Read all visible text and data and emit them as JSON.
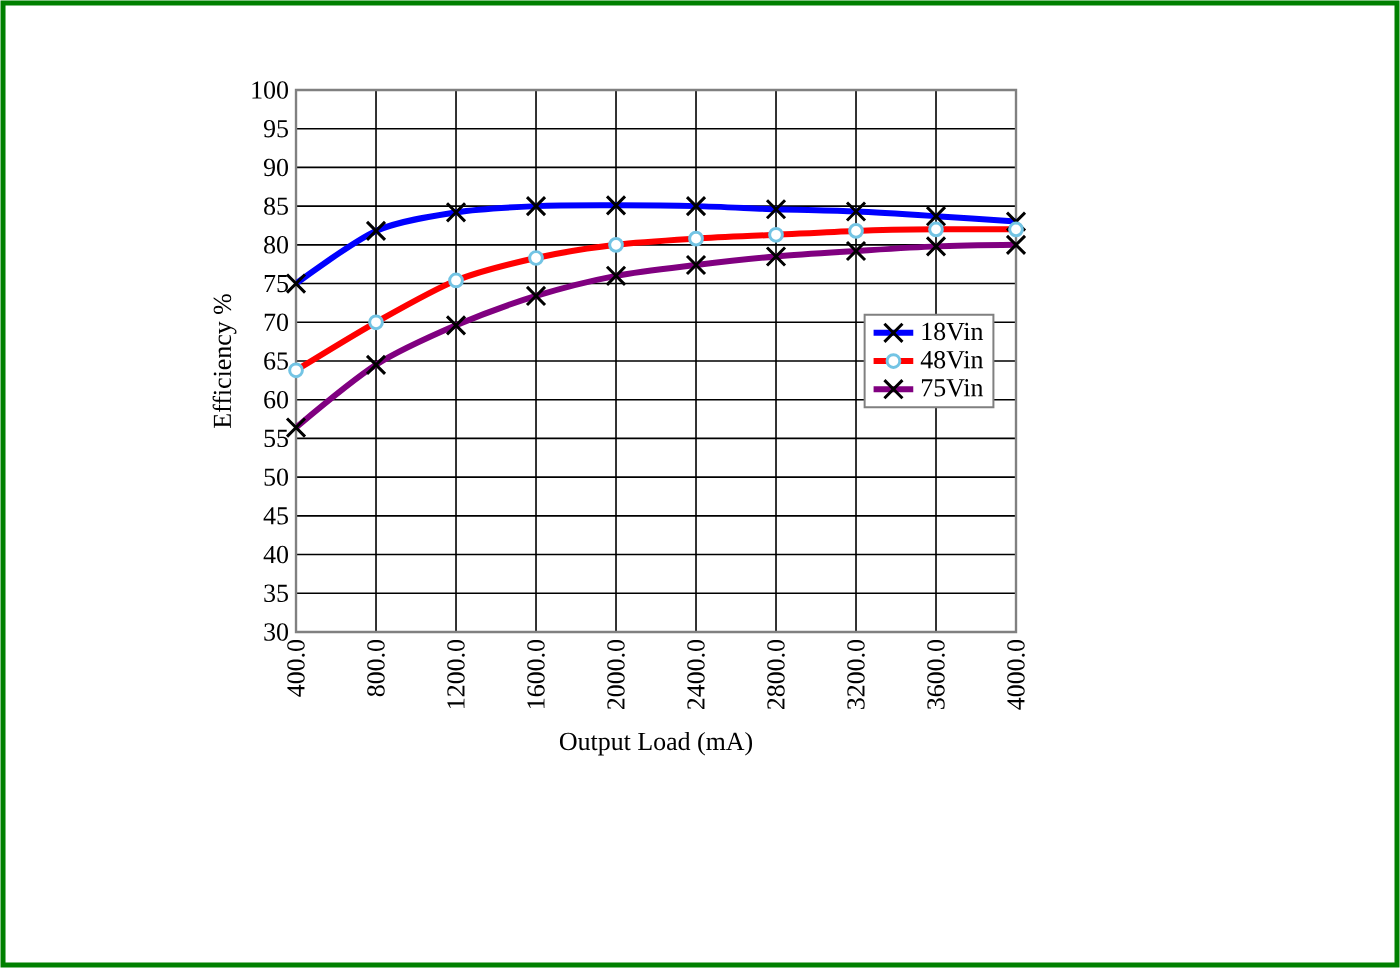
{
  "chart_data": {
    "type": "line",
    "xlabel": "Output Load (mA)",
    "ylabel": "Efficiency %",
    "x": [
      400,
      800,
      1200,
      1600,
      2000,
      2400,
      2800,
      3200,
      3600,
      4000
    ],
    "series": [
      {
        "name": "18Vin",
        "color": "#0000ff",
        "marker": "cross",
        "values": [
          75,
          81.8,
          84.2,
          85,
          85.1,
          85,
          84.6,
          84.3,
          83.7,
          83
        ]
      },
      {
        "name": "48Vin",
        "color": "#ff0000",
        "marker": "circle",
        "values": [
          63.8,
          70,
          75.4,
          78.3,
          80,
          80.8,
          81.3,
          81.8,
          82,
          82
        ]
      },
      {
        "name": "75Vin",
        "color": "#800080",
        "marker": "cross",
        "values": [
          56.4,
          64.5,
          69.6,
          73.4,
          76,
          77.4,
          78.5,
          79.2,
          79.8,
          80
        ]
      }
    ],
    "xlim": [
      400,
      4000
    ],
    "ylim": [
      30,
      100
    ],
    "xticks": [
      {
        "value": 400,
        "label": "400.0"
      },
      {
        "value": 800,
        "label": "800.0"
      },
      {
        "value": 1200,
        "label": "1200.0"
      },
      {
        "value": 1600,
        "label": "1600.0"
      },
      {
        "value": 2000,
        "label": "2000.0"
      },
      {
        "value": 2400,
        "label": "2400.0"
      },
      {
        "value": 2800,
        "label": "2800.0"
      },
      {
        "value": 3200,
        "label": "3200.0"
      },
      {
        "value": 3600,
        "label": "3600.0"
      },
      {
        "value": 4000,
        "label": "4000.0"
      }
    ],
    "yticks": [
      30,
      35,
      40,
      45,
      50,
      55,
      60,
      65,
      70,
      75,
      80,
      85,
      90,
      95,
      100
    ],
    "grid": true,
    "legend": "right",
    "line_style": "solid"
  }
}
